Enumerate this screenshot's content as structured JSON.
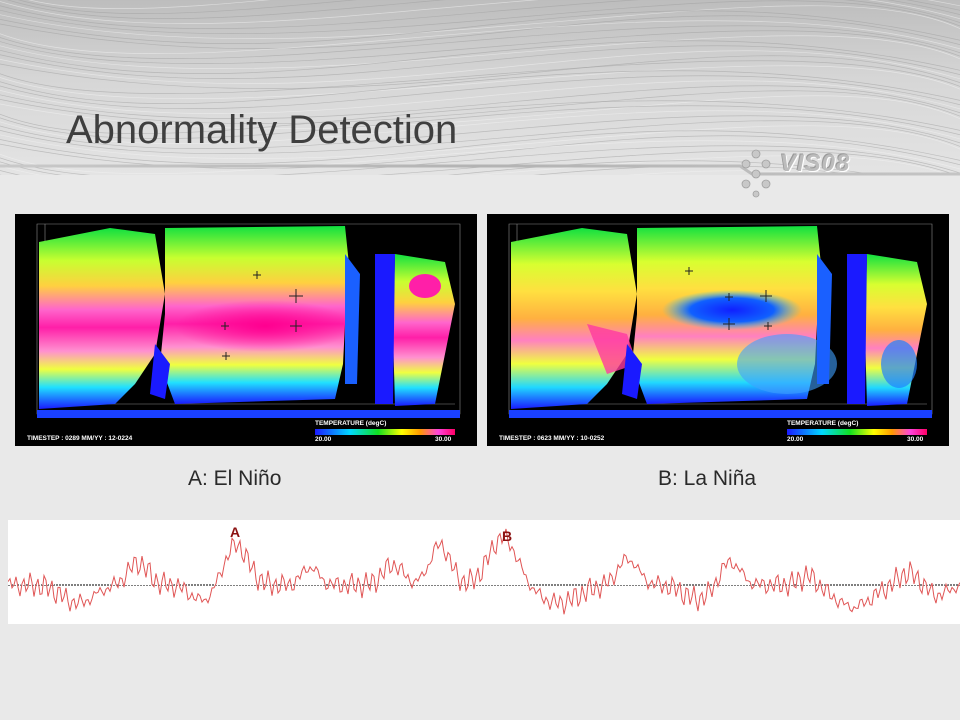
{
  "slide": {
    "title": "Abnormality Detection",
    "logo_text": "VIS08"
  },
  "panels": [
    {
      "caption": "A: El Niño",
      "timestep_text": "TIMESTEP : 0289   MM/YY : 12-0224",
      "colorbar_title": "TEMPERATURE (degC)",
      "colorbar_min": "20.00",
      "colorbar_max": "30.00"
    },
    {
      "caption": "B: La Niña",
      "timestep_text": "TIMESTEP : 0623   MM/YY : 10-0252",
      "colorbar_title": "TEMPERATURE (degC)",
      "colorbar_min": "20.00",
      "colorbar_max": "30.00"
    }
  ],
  "anomaly_plot": {
    "markers": [
      "A",
      "B"
    ],
    "line_color": "#e05555",
    "marker_color": "#8b1111"
  },
  "colors": {
    "background": "#e9e9e9",
    "title": "#3f3f3f",
    "colormap_low": "#1a1aff",
    "colormap_high": "#ff0066"
  }
}
